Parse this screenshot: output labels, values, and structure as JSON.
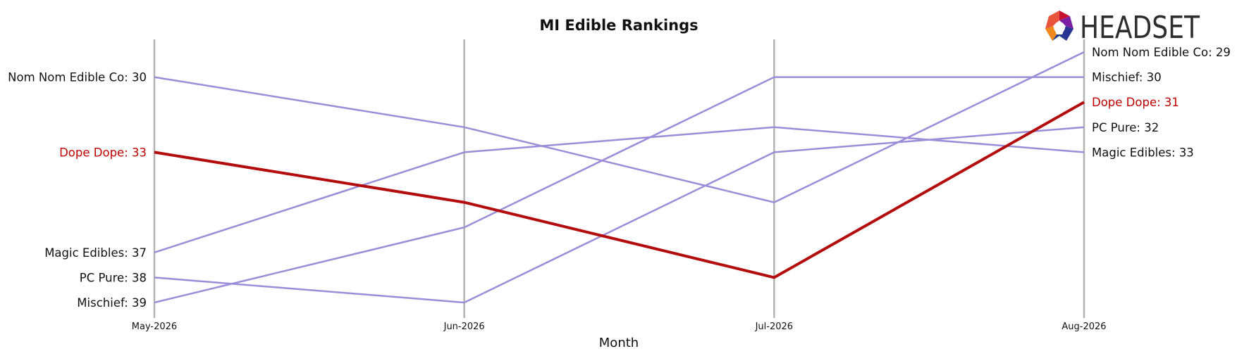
{
  "chart_data": {
    "type": "line",
    "title": "MI Edible Rankings",
    "xlabel": "Month",
    "ylabel": "",
    "categories": [
      "May-2026",
      "Jun-2026",
      "Jul-2026",
      "Aug-2026"
    ],
    "y_inverted": true,
    "ylim": [
      40,
      28
    ],
    "grid": "vertical lines at each month",
    "series": [
      {
        "name": "Nom Nom Edible Co",
        "values": [
          30,
          32,
          35,
          29
        ],
        "color": "#9b8dd8",
        "highlight": false
      },
      {
        "name": "Dope Dope",
        "values": [
          33,
          35,
          38,
          31
        ],
        "color": "#b30c0c",
        "highlight": true
      },
      {
        "name": "Magic Edibles",
        "values": [
          37,
          33,
          32,
          33
        ],
        "color": "#9b8dd8",
        "highlight": false
      },
      {
        "name": "PC Pure",
        "values": [
          38,
          39,
          33,
          32
        ],
        "color": "#9b8dd8",
        "highlight": false
      },
      {
        "name": "Mischief",
        "values": [
          39,
          36,
          30,
          30
        ],
        "color": "#9b8dd8",
        "highlight": false
      }
    ],
    "left_labels": [
      {
        "series": "Nom Nom Edible Co",
        "text": "Nom Nom Edible Co: 30"
      },
      {
        "series": "Dope Dope",
        "text": "Dope Dope: 33"
      },
      {
        "series": "Magic Edibles",
        "text": "Magic Edibles: 37"
      },
      {
        "series": "PC Pure",
        "text": "PC Pure: 38"
      },
      {
        "series": "Mischief",
        "text": "Mischief: 39"
      }
    ],
    "right_labels": [
      {
        "series": "Nom Nom Edible Co",
        "text": "Nom Nom Edible Co: 29"
      },
      {
        "series": "Mischief",
        "text": "Mischief: 30"
      },
      {
        "series": "Dope Dope",
        "text": "Dope Dope: 31"
      },
      {
        "series": "PC Pure",
        "text": "PC Pure: 32"
      },
      {
        "series": "Magic Edibles",
        "text": "Magic Edibles: 33"
      }
    ]
  },
  "logo": {
    "text": "HEADSET",
    "icon": "headset-logo-icon"
  },
  "colors": {
    "highlight": "#c00000",
    "line": "#9b8dd8",
    "grid": "#b3b3b3",
    "text": "#111111"
  }
}
